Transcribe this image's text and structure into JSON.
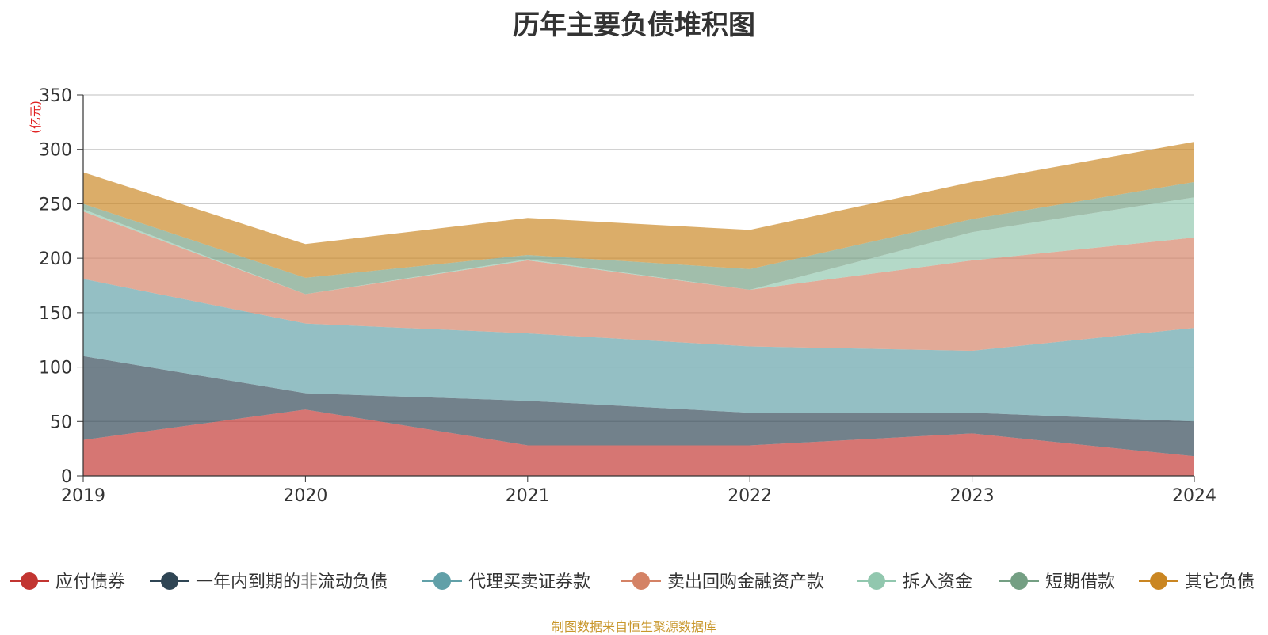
{
  "chart_data": {
    "type": "area",
    "stacked": true,
    "title": "历年主要负债堆积图",
    "unit_label": "(亿元)",
    "categories": [
      "2019",
      "2020",
      "2021",
      "2022",
      "2023",
      "2024"
    ],
    "ylim": [
      0,
      350
    ],
    "yticks": [
      0,
      50,
      100,
      150,
      200,
      250,
      300,
      350
    ],
    "grid": true,
    "legend_position": "bottom",
    "series": [
      {
        "name": "应付债券",
        "color": "#c23531",
        "values": [
          33,
          61,
          28,
          28,
          39,
          18
        ]
      },
      {
        "name": "一年内到期的非流动负债",
        "color": "#2f4554",
        "values": [
          77,
          15,
          41,
          30,
          19,
          32
        ]
      },
      {
        "name": "代理买卖证券款",
        "color": "#61a0a8",
        "values": [
          71,
          64,
          62,
          61,
          57,
          86
        ]
      },
      {
        "name": "卖出回购金融资产款",
        "color": "#d48265",
        "values": [
          62,
          27,
          67,
          52,
          83,
          83
        ]
      },
      {
        "name": "拆入资金",
        "color": "#91c7ae",
        "values": [
          2,
          0,
          1,
          0,
          26,
          37
        ]
      },
      {
        "name": "短期借款",
        "color": "#749f83",
        "values": [
          5,
          15,
          4,
          19,
          12,
          14
        ]
      },
      {
        "name": "其它负债",
        "color": "#ca8622",
        "values": [
          29,
          31,
          34,
          36,
          34,
          37
        ]
      }
    ]
  },
  "source_note": "制图数据来自恒生聚源数据库"
}
